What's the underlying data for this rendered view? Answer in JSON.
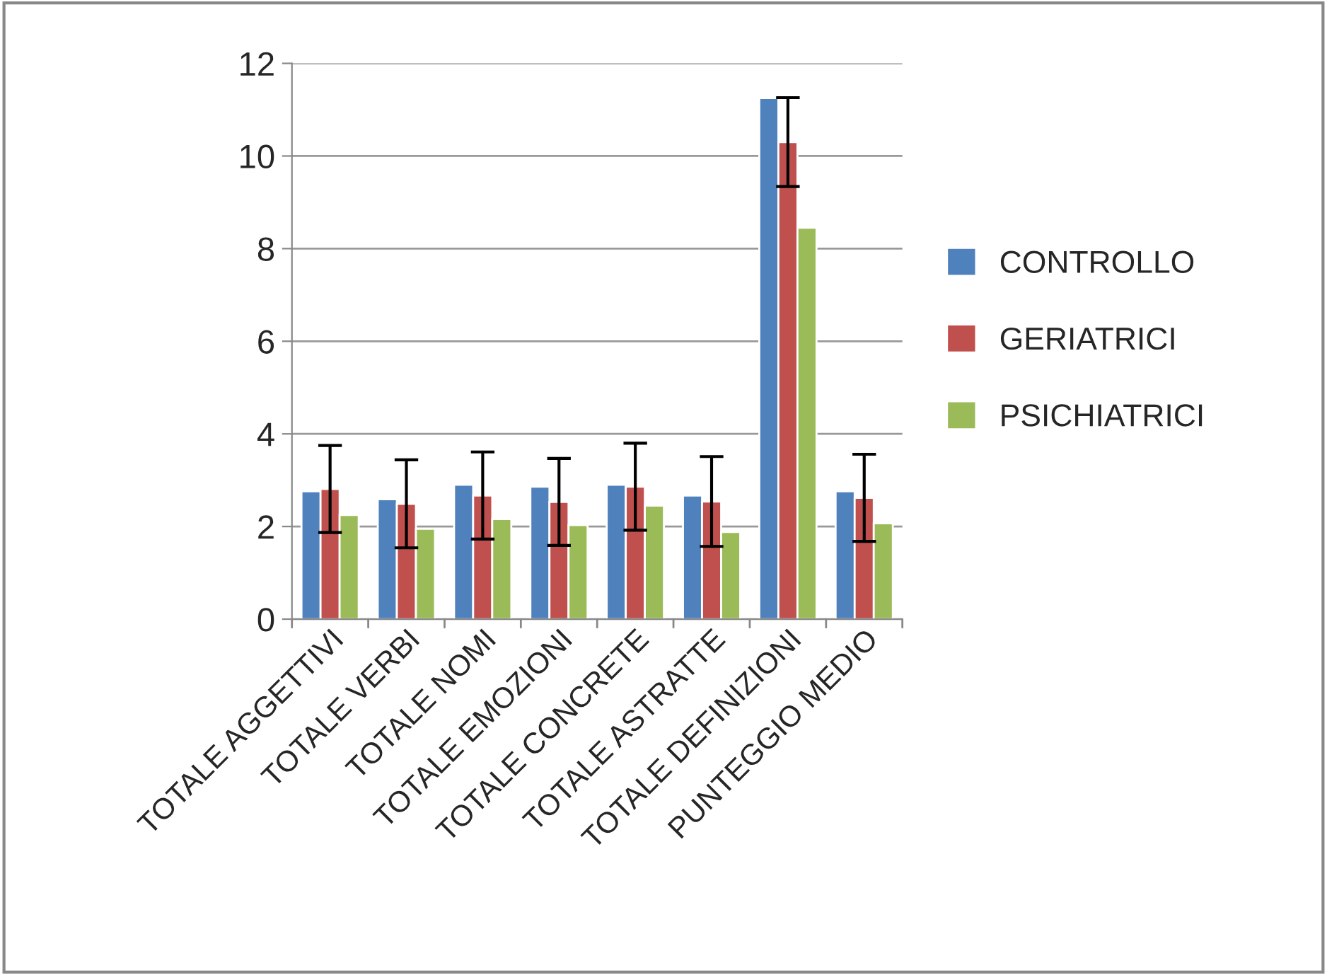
{
  "chart_data": {
    "type": "bar",
    "categories": [
      "TOTALE AGGETTIVI",
      "TOTALE VERBI",
      "TOTALE NOMI",
      "TOTALE EMOZIONI",
      "TOTALE CONCRETE",
      "TOTALE ASTRATTE",
      "TOTALE DEFINIZIONI",
      "PUNTEGGIO MEDIO"
    ],
    "series": [
      {
        "name": "CONTROLLO",
        "color": "#4f81bd",
        "values": [
          2.76,
          2.59,
          2.9,
          2.86,
          2.9,
          2.67,
          11.25,
          2.76
        ]
      },
      {
        "name": "GERIATRICI",
        "color": "#c0504d",
        "values": [
          2.81,
          2.49,
          2.67,
          2.53,
          2.86,
          2.54,
          10.3,
          2.62
        ],
        "errors": [
          0.94,
          0.95,
          0.94,
          0.94,
          0.94,
          0.97,
          0.96,
          0.94
        ]
      },
      {
        "name": "PSICHIATRICI",
        "color": "#9bbb59",
        "values": [
          2.25,
          1.95,
          2.16,
          2.03,
          2.45,
          1.88,
          8.45,
          2.07
        ]
      }
    ],
    "ylim": [
      0,
      12
    ],
    "yticks": [
      0,
      2,
      4,
      6,
      8,
      10,
      12
    ],
    "grid": "y",
    "legend": "right"
  }
}
